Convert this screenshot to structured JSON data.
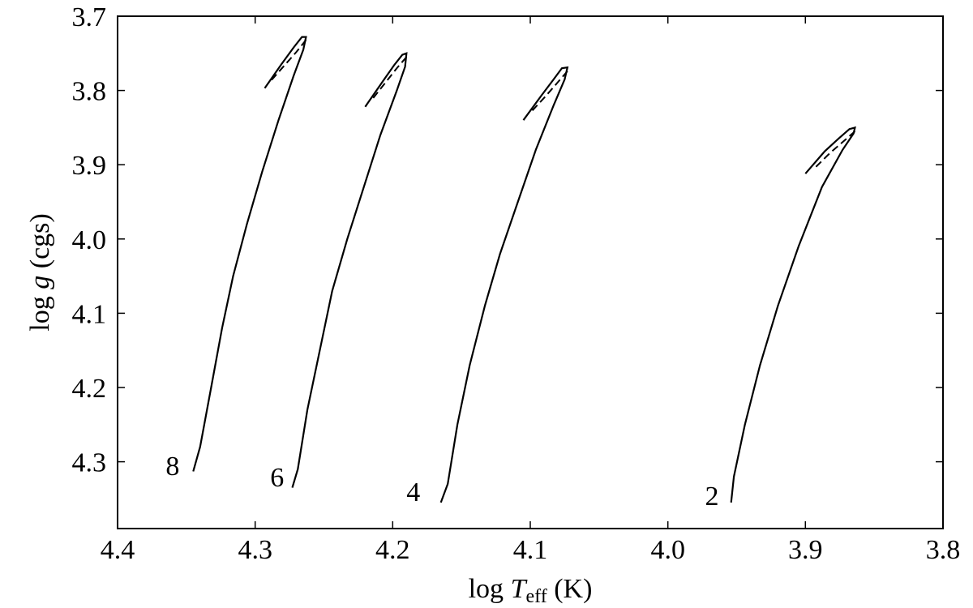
{
  "chart_data": {
    "type": "line",
    "title": "",
    "xlabel_prefix": "log ",
    "xlabel_symbol": "T",
    "xlabel_subscript": "eff",
    "xlabel_suffix": " (K)",
    "ylabel_prefix": "log ",
    "ylabel_symbol": "g",
    "ylabel_suffix": " (cgs)",
    "xlim": [
      4.4,
      3.8
    ],
    "ylim": [
      4.39,
      3.7
    ],
    "x_ticks": [
      4.4,
      4.3,
      4.2,
      4.1,
      4.0,
      3.9,
      3.8
    ],
    "x_tick_labels": [
      "4.4",
      "4.3",
      "4.2",
      "4.1",
      "4.0",
      "3.9",
      "3.8"
    ],
    "y_ticks": [
      3.7,
      3.8,
      3.9,
      4.0,
      4.1,
      4.2,
      4.3
    ],
    "y_tick_labels": [
      "3.7",
      "3.8",
      "3.9",
      "4.0",
      "4.1",
      "4.2",
      "4.3"
    ],
    "x_inverted": true,
    "y_inverted": true,
    "grid": false,
    "series": [
      {
        "name": "8",
        "label_x": 4.36,
        "label_y": 4.305,
        "solid": [
          [
            4.345,
            4.313
          ],
          [
            4.34,
            4.28
          ],
          [
            4.332,
            4.2
          ],
          [
            4.324,
            4.12
          ],
          [
            4.316,
            4.05
          ],
          [
            4.306,
            3.98
          ],
          [
            4.295,
            3.91
          ],
          [
            4.283,
            3.84
          ],
          [
            4.272,
            3.78
          ],
          [
            4.265,
            3.745
          ],
          [
            4.263,
            3.728
          ],
          [
            4.266,
            3.728
          ],
          [
            4.272,
            3.742
          ],
          [
            4.281,
            3.765
          ],
          [
            4.293,
            3.797
          ]
        ],
        "dashed": [
          [
            4.263,
            3.732
          ],
          [
            4.27,
            3.748
          ],
          [
            4.28,
            3.769
          ],
          [
            4.29,
            3.79
          ]
        ]
      },
      {
        "name": "6",
        "label_x": 4.284,
        "label_y": 4.32,
        "solid": [
          [
            4.273,
            4.335
          ],
          [
            4.269,
            4.31
          ],
          [
            4.262,
            4.23
          ],
          [
            4.253,
            4.15
          ],
          [
            4.244,
            4.07
          ],
          [
            4.233,
            4.0
          ],
          [
            4.221,
            3.93
          ],
          [
            4.209,
            3.86
          ],
          [
            4.197,
            3.8
          ],
          [
            4.191,
            3.768
          ],
          [
            4.19,
            3.75
          ],
          [
            4.193,
            3.752
          ],
          [
            4.199,
            3.766
          ],
          [
            4.207,
            3.787
          ],
          [
            4.22,
            3.822
          ]
        ],
        "dashed": [
          [
            4.19,
            3.755
          ],
          [
            4.197,
            3.77
          ],
          [
            4.206,
            3.791
          ],
          [
            4.215,
            3.812
          ]
        ]
      },
      {
        "name": "4",
        "label_x": 4.185,
        "label_y": 4.34,
        "solid": [
          [
            4.165,
            4.355
          ],
          [
            4.16,
            4.33
          ],
          [
            4.153,
            4.25
          ],
          [
            4.144,
            4.17
          ],
          [
            4.133,
            4.09
          ],
          [
            4.122,
            4.02
          ],
          [
            4.109,
            3.95
          ],
          [
            4.096,
            3.88
          ],
          [
            4.083,
            3.82
          ],
          [
            4.075,
            3.785
          ],
          [
            4.073,
            3.769
          ],
          [
            4.077,
            3.77
          ],
          [
            4.083,
            3.785
          ],
          [
            4.092,
            3.807
          ],
          [
            4.105,
            3.84
          ]
        ],
        "dashed": [
          [
            4.073,
            3.774
          ],
          [
            4.08,
            3.789
          ],
          [
            4.089,
            3.808
          ],
          [
            4.1,
            3.83
          ]
        ]
      },
      {
        "name": "2",
        "label_x": 3.968,
        "label_y": 4.345,
        "solid": [
          [
            3.954,
            4.355
          ],
          [
            3.952,
            4.32
          ],
          [
            3.944,
            4.25
          ],
          [
            3.933,
            4.17
          ],
          [
            3.92,
            4.09
          ],
          [
            3.905,
            4.01
          ],
          [
            3.888,
            3.93
          ],
          [
            3.873,
            3.88
          ],
          [
            3.865,
            3.858
          ],
          [
            3.864,
            3.85
          ],
          [
            3.868,
            3.852
          ],
          [
            3.876,
            3.865
          ],
          [
            3.886,
            3.882
          ],
          [
            3.9,
            3.912
          ]
        ],
        "dashed": [
          [
            3.864,
            3.855
          ],
          [
            3.872,
            3.868
          ],
          [
            3.882,
            3.884
          ],
          [
            3.893,
            3.904
          ]
        ]
      }
    ]
  }
}
